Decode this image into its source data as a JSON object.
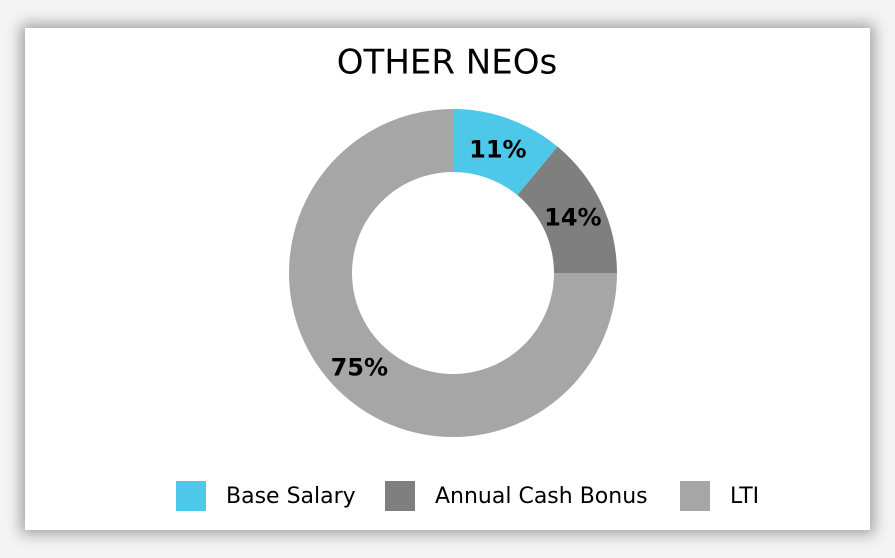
{
  "chart_data": {
    "type": "donut",
    "title": "OTHER NEOs",
    "categories": [
      "Base Salary",
      "Annual Cash Bonus",
      "LTI"
    ],
    "values": [
      11,
      14,
      75
    ],
    "value_labels": [
      "11%",
      "14%",
      "75%"
    ],
    "colors": [
      "#4dc8e9",
      "#7f7f7f",
      "#a6a6a6"
    ],
    "legend": "bottom"
  }
}
